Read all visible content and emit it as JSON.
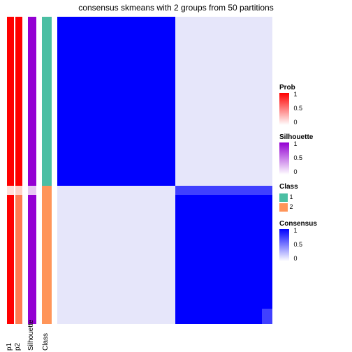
{
  "title": "consensus skmeans with 2 groups from 50 partitions",
  "annotation_tracks": [
    {
      "name": "p1",
      "x": 0,
      "width": 10,
      "segments": [
        {
          "color": "#ff0000",
          "from": 0.0,
          "to": 0.55
        },
        {
          "color": "#ffe0da",
          "from": 0.55,
          "to": 0.58
        },
        {
          "color": "#ff0000",
          "from": 0.58,
          "to": 1.0
        }
      ]
    },
    {
      "name": "p2",
      "x": 12,
      "width": 10,
      "segments": [
        {
          "color": "#ff0000",
          "from": 0.0,
          "to": 0.55
        },
        {
          "color": "#ffd3c9",
          "from": 0.55,
          "to": 0.58
        },
        {
          "color": "#ff7a50",
          "from": 0.58,
          "to": 1.0
        }
      ]
    },
    {
      "name": "Silhouette",
      "x": 30,
      "width": 12,
      "segments": [
        {
          "color": "#9400d3",
          "from": 0.0,
          "to": 0.55
        },
        {
          "color": "#e8c8f3",
          "from": 0.55,
          "to": 0.58
        },
        {
          "color": "#9400d3",
          "from": 0.58,
          "to": 1.0
        }
      ]
    },
    {
      "name": "Class",
      "x": 50,
      "width": 14,
      "segments": [
        {
          "color": "#4bbfa3",
          "from": 0.0,
          "to": 0.55
        },
        {
          "color": "#ff9559",
          "from": 0.55,
          "to": 1.0
        }
      ]
    }
  ],
  "heatmap": {
    "background": "#e6e6fa",
    "blocks": [
      {
        "color": "#0000ff",
        "x_from": 0.0,
        "x_to": 0.55,
        "y_from": 0.0,
        "y_to": 0.55
      },
      {
        "color": "#0000ff",
        "x_from": 0.55,
        "x_to": 1.0,
        "y_from": 0.58,
        "y_to": 1.0
      },
      {
        "color": "#4040ff",
        "x_from": 0.55,
        "x_to": 1.0,
        "y_from": 0.55,
        "y_to": 0.58
      },
      {
        "color": "#4040ff",
        "x_from": 0.95,
        "x_to": 1.0,
        "y_from": 0.95,
        "y_to": 1.0,
        "over": true
      }
    ]
  },
  "legends": {
    "prob": {
      "title": "Prob",
      "gradient": [
        "#ffffff",
        "#ff0000"
      ],
      "ticks": [
        {
          "v": "1",
          "p": 0
        },
        {
          "v": "0.5",
          "p": 0.5
        },
        {
          "v": "0",
          "p": 1
        }
      ]
    },
    "silhouette": {
      "title": "Silhouette",
      "gradient": [
        "#ffffff",
        "#9400d3"
      ],
      "ticks": [
        {
          "v": "1",
          "p": 0
        },
        {
          "v": "0.5",
          "p": 0.5
        },
        {
          "v": "0",
          "p": 1
        }
      ]
    },
    "class": {
      "title": "Class",
      "items": [
        {
          "label": "1",
          "color": "#4bbfa3"
        },
        {
          "label": "2",
          "color": "#ff9559"
        }
      ]
    },
    "consensus": {
      "title": "Consensus",
      "gradient": [
        "#ffffff",
        "#0000ff"
      ],
      "ticks": [
        {
          "v": "1",
          "p": 0
        },
        {
          "v": "0.5",
          "p": 0.5
        },
        {
          "v": "0",
          "p": 1
        }
      ]
    }
  }
}
